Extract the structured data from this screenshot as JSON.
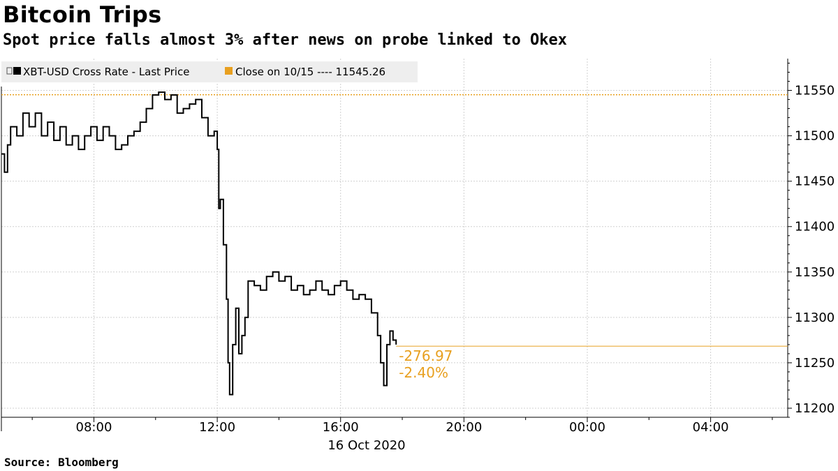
{
  "header": {
    "title": "Bitcoin Trips",
    "subtitle": "Spot price falls almost 3% after news on probe linked to Okex"
  },
  "footer": {
    "source": "Source:  Bloomberg"
  },
  "colors": {
    "price_line": "#000000",
    "close_line": "#e8a020",
    "grid": "#d0d0d0",
    "legend_bg": "#eeeeee"
  },
  "chart_data": {
    "type": "line",
    "title": "Bitcoin Trips",
    "subtitle": "Spot price falls almost 3% after news on probe linked to Okex",
    "x_unit": "hours since 16 Oct 2020 00:00",
    "xlim": [
      5.0,
      30.5
    ],
    "ylim": [
      11190,
      11585
    ],
    "y_ticks": [
      11200,
      11250,
      11300,
      11350,
      11400,
      11450,
      11500,
      11550
    ],
    "x_ticks": [
      {
        "x": 8,
        "label": "08:00"
      },
      {
        "x": 12,
        "label": "12:00"
      },
      {
        "x": 16,
        "label": "16:00"
      },
      {
        "x": 20,
        "label": "20:00"
      },
      {
        "x": 24,
        "label": "00:00"
      },
      {
        "x": 28,
        "label": "04:00"
      }
    ],
    "date_label": "16 Oct 2020",
    "grid": true,
    "legend_position": "top-left",
    "legend": [
      "XBT-USD Cross Rate - Last Price",
      "Close on 10/15 ---- 11545.26"
    ],
    "series": [
      {
        "name": "XBT-USD Cross Rate - Last Price",
        "points": [
          [
            5.0,
            11480
          ],
          [
            5.1,
            11460
          ],
          [
            5.2,
            11490
          ],
          [
            5.3,
            11510
          ],
          [
            5.5,
            11500
          ],
          [
            5.7,
            11525
          ],
          [
            5.9,
            11510
          ],
          [
            6.1,
            11525
          ],
          [
            6.3,
            11500
          ],
          [
            6.5,
            11515
          ],
          [
            6.7,
            11495
          ],
          [
            6.9,
            11510
          ],
          [
            7.1,
            11490
          ],
          [
            7.3,
            11500
          ],
          [
            7.5,
            11485
          ],
          [
            7.7,
            11500
          ],
          [
            7.9,
            11510
          ],
          [
            8.1,
            11495
          ],
          [
            8.3,
            11510
          ],
          [
            8.5,
            11500
          ],
          [
            8.7,
            11485
          ],
          [
            8.9,
            11490
          ],
          [
            9.1,
            11500
          ],
          [
            9.3,
            11505
          ],
          [
            9.5,
            11515
          ],
          [
            9.7,
            11530
          ],
          [
            9.9,
            11545
          ],
          [
            10.1,
            11548
          ],
          [
            10.3,
            11540
          ],
          [
            10.5,
            11545
          ],
          [
            10.7,
            11525
          ],
          [
            10.9,
            11530
          ],
          [
            11.1,
            11535
          ],
          [
            11.3,
            11540
          ],
          [
            11.5,
            11520
          ],
          [
            11.7,
            11500
          ],
          [
            11.9,
            11505
          ],
          [
            12.0,
            11485
          ],
          [
            12.05,
            11420
          ],
          [
            12.1,
            11430
          ],
          [
            12.2,
            11380
          ],
          [
            12.3,
            11320
          ],
          [
            12.35,
            11250
          ],
          [
            12.4,
            11215
          ],
          [
            12.5,
            11270
          ],
          [
            12.6,
            11310
          ],
          [
            12.7,
            11260
          ],
          [
            12.8,
            11280
          ],
          [
            12.9,
            11300
          ],
          [
            13.0,
            11340
          ],
          [
            13.2,
            11335
          ],
          [
            13.4,
            11330
          ],
          [
            13.6,
            11345
          ],
          [
            13.8,
            11350
          ],
          [
            14.0,
            11340
          ],
          [
            14.2,
            11345
          ],
          [
            14.4,
            11330
          ],
          [
            14.6,
            11335
          ],
          [
            14.8,
            11325
          ],
          [
            15.0,
            11330
          ],
          [
            15.2,
            11340
          ],
          [
            15.4,
            11330
          ],
          [
            15.6,
            11325
          ],
          [
            15.8,
            11335
          ],
          [
            16.0,
            11340
          ],
          [
            16.2,
            11330
          ],
          [
            16.4,
            11320
          ],
          [
            16.6,
            11325
          ],
          [
            16.8,
            11320
          ],
          [
            17.0,
            11305
          ],
          [
            17.2,
            11280
          ],
          [
            17.3,
            11250
          ],
          [
            17.4,
            11225
          ],
          [
            17.5,
            11270
          ],
          [
            17.6,
            11285
          ],
          [
            17.7,
            11275
          ],
          [
            17.8,
            11270
          ]
        ]
      },
      {
        "name": "Close on 10/15",
        "value": 11545.26
      }
    ],
    "end_level": 11268.29,
    "annotations": {
      "change": "-276.97",
      "change_pct": "-2.40%"
    }
  }
}
